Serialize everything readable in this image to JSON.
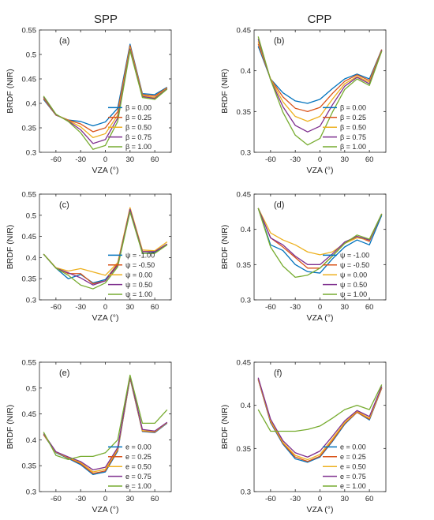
{
  "columns": [
    "SPP",
    "CPP"
  ],
  "colors": [
    "#0072BD",
    "#D95319",
    "#EDB120",
    "#7E2F8E",
    "#77AC30"
  ],
  "chart_data": [
    {
      "type": "line",
      "panel": "(a)",
      "column": "SPP",
      "xlabel": "VZA (°)",
      "ylabel": "BRDF (NIR)",
      "xlim": [
        -80,
        80
      ],
      "ylim": [
        0.3,
        0.55
      ],
      "xticks": [
        -60,
        -30,
        0,
        30,
        60
      ],
      "yticks": [
        0.3,
        0.35,
        0.4,
        0.45,
        0.5,
        0.55
      ],
      "legend_position": "bottom-right",
      "x": [
        -75,
        -60,
        -45,
        -30,
        -15,
        0,
        15,
        30,
        45,
        60,
        75
      ],
      "series": [
        {
          "name": "β = 0.00",
          "values": [
            0.408,
            0.376,
            0.366,
            0.363,
            0.354,
            0.362,
            0.39,
            0.521,
            0.42,
            0.418,
            0.433
          ]
        },
        {
          "name": "β = 0.25",
          "values": [
            0.41,
            0.376,
            0.366,
            0.358,
            0.342,
            0.35,
            0.383,
            0.518,
            0.418,
            0.415,
            0.432
          ]
        },
        {
          "name": "β = 0.50",
          "values": [
            0.412,
            0.377,
            0.365,
            0.352,
            0.33,
            0.338,
            0.376,
            0.514,
            0.416,
            0.412,
            0.431
          ]
        },
        {
          "name": "β = 0.75",
          "values": [
            0.413,
            0.377,
            0.364,
            0.346,
            0.318,
            0.326,
            0.37,
            0.511,
            0.414,
            0.41,
            0.43
          ]
        },
        {
          "name": "β = 1.00",
          "values": [
            0.415,
            0.378,
            0.363,
            0.34,
            0.306,
            0.314,
            0.363,
            0.508,
            0.412,
            0.408,
            0.429
          ]
        }
      ]
    },
    {
      "type": "line",
      "panel": "(b)",
      "column": "CPP",
      "xlabel": "VZA (°)",
      "ylabel": "BRDF (NIR)",
      "xlim": [
        -80,
        80
      ],
      "ylim": [
        0.3,
        0.45
      ],
      "xticks": [
        -60,
        -30,
        0,
        30,
        60
      ],
      "yticks": [
        0.3,
        0.35,
        0.4,
        0.45
      ],
      "legend_position": "bottom-right",
      "x": [
        -75,
        -60,
        -45,
        -30,
        -15,
        0,
        15,
        30,
        45,
        60,
        75
      ],
      "series": [
        {
          "name": "β = 0.00",
          "values": [
            0.43,
            0.39,
            0.373,
            0.363,
            0.36,
            0.365,
            0.378,
            0.39,
            0.396,
            0.39,
            0.426
          ]
        },
        {
          "name": "β = 0.25",
          "values": [
            0.433,
            0.39,
            0.368,
            0.354,
            0.35,
            0.355,
            0.372,
            0.387,
            0.395,
            0.388,
            0.426
          ]
        },
        {
          "name": "β = 0.50",
          "values": [
            0.436,
            0.39,
            0.362,
            0.344,
            0.338,
            0.344,
            0.365,
            0.384,
            0.393,
            0.386,
            0.425
          ]
        },
        {
          "name": "β = 0.75",
          "values": [
            0.439,
            0.389,
            0.356,
            0.333,
            0.325,
            0.332,
            0.358,
            0.381,
            0.392,
            0.384,
            0.425
          ]
        },
        {
          "name": "β = 1.00",
          "values": [
            0.442,
            0.389,
            0.349,
            0.321,
            0.309,
            0.317,
            0.349,
            0.377,
            0.39,
            0.382,
            0.424
          ]
        }
      ]
    },
    {
      "type": "line",
      "panel": "(c)",
      "column": "SPP",
      "xlabel": "VZA (°)",
      "ylabel": "BRDF (NIR)",
      "xlim": [
        -80,
        80
      ],
      "ylim": [
        0.3,
        0.55
      ],
      "xticks": [
        -60,
        -30,
        0,
        30,
        60
      ],
      "yticks": [
        0.3,
        0.35,
        0.4,
        0.45,
        0.5,
        0.55
      ],
      "legend_position": "bottom-right",
      "x": [
        -75,
        -60,
        -45,
        -30,
        -15,
        0,
        15,
        30,
        45,
        60,
        75
      ],
      "series": [
        {
          "name": "ψ = -1.00",
          "values": [
            0.408,
            0.375,
            0.35,
            0.36,
            0.34,
            0.348,
            0.385,
            0.515,
            0.41,
            0.412,
            0.43
          ]
        },
        {
          "name": "ψ = -0.50",
          "values": [
            0.408,
            0.376,
            0.362,
            0.362,
            0.338,
            0.345,
            0.386,
            0.517,
            0.415,
            0.414,
            0.432
          ]
        },
        {
          "name": "ψ = 0.00",
          "values": [
            0.408,
            0.376,
            0.368,
            0.374,
            0.366,
            0.358,
            0.388,
            0.518,
            0.418,
            0.416,
            0.437
          ]
        },
        {
          "name": "ψ = 0.50",
          "values": [
            0.408,
            0.375,
            0.364,
            0.352,
            0.335,
            0.345,
            0.382,
            0.514,
            0.414,
            0.414,
            0.432
          ]
        },
        {
          "name": "ψ = 1.00",
          "values": [
            0.408,
            0.375,
            0.358,
            0.335,
            0.326,
            0.34,
            0.378,
            0.508,
            0.41,
            0.41,
            0.43
          ]
        }
      ]
    },
    {
      "type": "line",
      "panel": "(d)",
      "column": "CPP",
      "xlabel": "VZA (°)",
      "ylabel": "BRDF (NIR)",
      "xlim": [
        -80,
        80
      ],
      "ylim": [
        0.3,
        0.45
      ],
      "xticks": [
        -60,
        -30,
        0,
        30,
        60
      ],
      "yticks": [
        0.3,
        0.35,
        0.4,
        0.45
      ],
      "legend_position": "bottom-right",
      "x": [
        -75,
        -60,
        -45,
        -30,
        -15,
        0,
        15,
        30,
        45,
        60,
        75
      ],
      "series": [
        {
          "name": "ψ = -1.00",
          "values": [
            0.43,
            0.378,
            0.37,
            0.35,
            0.34,
            0.338,
            0.358,
            0.375,
            0.385,
            0.378,
            0.42
          ]
        },
        {
          "name": "ψ = -0.50",
          "values": [
            0.43,
            0.388,
            0.375,
            0.36,
            0.345,
            0.345,
            0.362,
            0.38,
            0.39,
            0.383,
            0.422
          ]
        },
        {
          "name": "ψ = 0.00",
          "values": [
            0.43,
            0.395,
            0.385,
            0.378,
            0.368,
            0.364,
            0.368,
            0.38,
            0.388,
            0.385,
            0.422
          ]
        },
        {
          "name": "ψ = 0.50",
          "values": [
            0.43,
            0.388,
            0.378,
            0.362,
            0.35,
            0.35,
            0.365,
            0.382,
            0.39,
            0.385,
            0.422
          ]
        },
        {
          "name": "ψ = 1.00",
          "values": [
            0.43,
            0.375,
            0.348,
            0.332,
            0.335,
            0.345,
            0.362,
            0.38,
            0.392,
            0.386,
            0.422
          ]
        }
      ]
    },
    {
      "type": "line",
      "panel": "(e)",
      "column": "SPP",
      "xlabel": "VZA (°)",
      "ylabel": "BRDF (NIR)",
      "xlim": [
        -80,
        80
      ],
      "ylim": [
        0.3,
        0.55
      ],
      "xticks": [
        -60,
        -30,
        0,
        30,
        60
      ],
      "yticks": [
        0.3,
        0.35,
        0.4,
        0.45,
        0.5,
        0.55
      ],
      "legend_position": "bottom-right",
      "x": [
        -75,
        -60,
        -45,
        -30,
        -15,
        0,
        15,
        30,
        45,
        60,
        75
      ],
      "series": [
        {
          "name": "e = 0.00",
          "values": [
            0.41,
            0.375,
            0.364,
            0.352,
            0.333,
            0.338,
            0.378,
            0.519,
            0.416,
            0.414,
            0.432
          ]
        },
        {
          "name": "e = 0.25",
          "values": [
            0.41,
            0.376,
            0.365,
            0.354,
            0.335,
            0.34,
            0.38,
            0.52,
            0.417,
            0.415,
            0.433
          ]
        },
        {
          "name": "e = 0.50",
          "values": [
            0.411,
            0.376,
            0.366,
            0.356,
            0.338,
            0.343,
            0.382,
            0.52,
            0.418,
            0.416,
            0.433
          ]
        },
        {
          "name": "e = 0.75",
          "values": [
            0.412,
            0.377,
            0.367,
            0.358,
            0.342,
            0.347,
            0.385,
            0.522,
            0.42,
            0.417,
            0.434
          ]
        },
        {
          "name": "e = 1.00",
          "values": [
            0.415,
            0.37,
            0.362,
            0.368,
            0.368,
            0.375,
            0.4,
            0.525,
            0.432,
            0.432,
            0.458
          ]
        }
      ]
    },
    {
      "type": "line",
      "panel": "(f)",
      "column": "CPP",
      "xlabel": "VZA (°)",
      "ylabel": "BRDF (NIR)",
      "xlim": [
        -80,
        80
      ],
      "ylim": [
        0.3,
        0.45
      ],
      "xticks": [
        -60,
        -30,
        0,
        30,
        60
      ],
      "yticks": [
        0.3,
        0.35,
        0.4,
        0.45
      ],
      "legend_position": "bottom-right",
      "x": [
        -75,
        -60,
        -45,
        -30,
        -15,
        0,
        15,
        30,
        45,
        60,
        75
      ],
      "series": [
        {
          "name": "e = 0.00",
          "values": [
            0.43,
            0.38,
            0.355,
            0.338,
            0.334,
            0.34,
            0.358,
            0.378,
            0.392,
            0.383,
            0.42
          ]
        },
        {
          "name": "e = 0.25",
          "values": [
            0.43,
            0.381,
            0.356,
            0.34,
            0.335,
            0.341,
            0.359,
            0.379,
            0.392,
            0.384,
            0.42
          ]
        },
        {
          "name": "e = 0.50",
          "values": [
            0.431,
            0.382,
            0.357,
            0.342,
            0.337,
            0.343,
            0.361,
            0.38,
            0.393,
            0.385,
            0.421
          ]
        },
        {
          "name": "e = 0.75",
          "values": [
            0.432,
            0.384,
            0.359,
            0.345,
            0.34,
            0.347,
            0.364,
            0.382,
            0.394,
            0.387,
            0.422
          ]
        },
        {
          "name": "e = 1.00",
          "values": [
            0.395,
            0.37,
            0.37,
            0.37,
            0.372,
            0.376,
            0.385,
            0.395,
            0.4,
            0.395,
            0.424
          ]
        }
      ]
    }
  ]
}
